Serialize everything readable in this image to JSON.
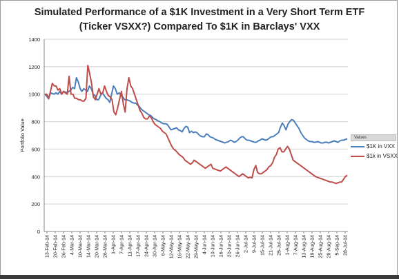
{
  "chart_data": {
    "type": "line",
    "title_line1": "Simulated Performance of a $1K Investment in a Very Short Term ETF",
    "title_line2": "(Ticker VSXX?)  Compared To $1K in Barclays' VXX",
    "xlabel": "",
    "ylabel": "Portfolio Value",
    "ylim": [
      0,
      1400
    ],
    "yticks": [
      0,
      200,
      400,
      600,
      800,
      1000,
      1200,
      1400
    ],
    "grid": "horizontal",
    "legend_position": "right",
    "legend_header": "Values",
    "x_tick_labels": [
      "13-Feb-14",
      "20-Feb-14",
      "26-Feb-14",
      "4-Mar-14",
      "10-Mar-14",
      "14-Mar-14",
      "20-Mar-14",
      "26-Mar-14",
      "1-Apr-14",
      "7-Apr-14",
      "11-Apr-14",
      "17-Apr-14",
      "24-Apr-14",
      "30-Apr-14",
      "6-May-14",
      "12-May-14",
      "16-May-14",
      "22-May-14",
      "29-May-14",
      "4-Jun-14",
      "10-Jun-14",
      "16-Jun-14",
      "20-Jun-14",
      "26-Jun-14",
      "2-Jul-14",
      "9-Jul-14",
      "15-Jul-14",
      "21-Jul-14",
      "25-Jul-14",
      "1-Aug-14",
      "7-Aug-14",
      "13-Aug-14",
      "19-Aug-14",
      "25-Aug-14",
      "29-Aug-14",
      "5-Sep-14",
      "28-Jul-14"
    ],
    "series": [
      {
        "name": "$1K in VXX",
        "color": "#4a7ebb",
        "values": [
          1000,
          985,
          965,
          1010,
          1005,
          1000,
          1010,
          1000,
          1020,
          1000,
          1020,
          1015,
          1010,
          1020,
          1030,
          1050,
          1040,
          1120,
          1090,
          1040,
          1020,
          1040,
          1030,
          1020,
          1060,
          1040,
          1000,
          990,
          960,
          960,
          990,
          1010,
          990,
          970,
          960,
          940,
          1000,
          1060,
          1040,
          1000,
          1010,
          990,
          980,
          960,
          960,
          955,
          950,
          940,
          935,
          935,
          920,
          910,
          890,
          880,
          870,
          860,
          850,
          845,
          830,
          820,
          815,
          805,
          800,
          790,
          785,
          785,
          780,
          760,
          740,
          745,
          750,
          755,
          740,
          735,
          725,
          750,
          765,
          760,
          720,
          730,
          720,
          725,
          720,
          705,
          695,
          690,
          690,
          710,
          705,
          690,
          685,
          680,
          670,
          665,
          660,
          655,
          650,
          645,
          650,
          655,
          665,
          660,
          650,
          655,
          665,
          680,
          690,
          690,
          675,
          665,
          665,
          660,
          655,
          650,
          650,
          660,
          665,
          675,
          670,
          665,
          670,
          680,
          690,
          690,
          700,
          710,
          720,
          760,
          790,
          770,
          740,
          780,
          800,
          815,
          810,
          790,
          770,
          750,
          720,
          700,
          680,
          670,
          660,
          655,
          655,
          650,
          650,
          655,
          650,
          645,
          645,
          650,
          650,
          645,
          650,
          655,
          660,
          655,
          650,
          660,
          665,
          665,
          670,
          675
        ]
      },
      {
        "name": "$1k in VSXX",
        "color": "#be4b48",
        "values": [
          1000,
          1000,
          970,
          1020,
          1080,
          1060,
          1060,
          1030,
          1040,
          1000,
          1020,
          1010,
          1000,
          1130,
          1000,
          1000,
          970,
          970,
          960,
          960,
          950,
          950,
          970,
          1210,
          1150,
          1080,
          980,
          960,
          1000,
          1040,
          1000,
          1010,
          1060,
          1020,
          990,
          980,
          960,
          870,
          850,
          900,
          960,
          1020,
          930,
          870,
          1040,
          1120,
          1060,
          1040,
          1000,
          960,
          920,
          880,
          860,
          830,
          820,
          820,
          840,
          830,
          800,
          780,
          770,
          760,
          750,
          730,
          720,
          710,
          680,
          650,
          620,
          600,
          590,
          575,
          560,
          550,
          540,
          520,
          510,
          500,
          490,
          500,
          520,
          510,
          500,
          490,
          480,
          470,
          460,
          470,
          480,
          490,
          460,
          455,
          450,
          445,
          440,
          450,
          460,
          470,
          460,
          450,
          440,
          430,
          420,
          410,
          400,
          410,
          420,
          410,
          400,
          390,
          395,
          390,
          450,
          480,
          430,
          420,
          420,
          430,
          440,
          450,
          470,
          480,
          500,
          540,
          560,
          600,
          610,
          580,
          580,
          600,
          620,
          600,
          560,
          520,
          510,
          500,
          490,
          480,
          470,
          460,
          450,
          440,
          430,
          420,
          410,
          400,
          395,
          390,
          385,
          380,
          375,
          370,
          365,
          360,
          360,
          355,
          350,
          355,
          360,
          360,
          380,
          400,
          410
        ]
      }
    ]
  }
}
